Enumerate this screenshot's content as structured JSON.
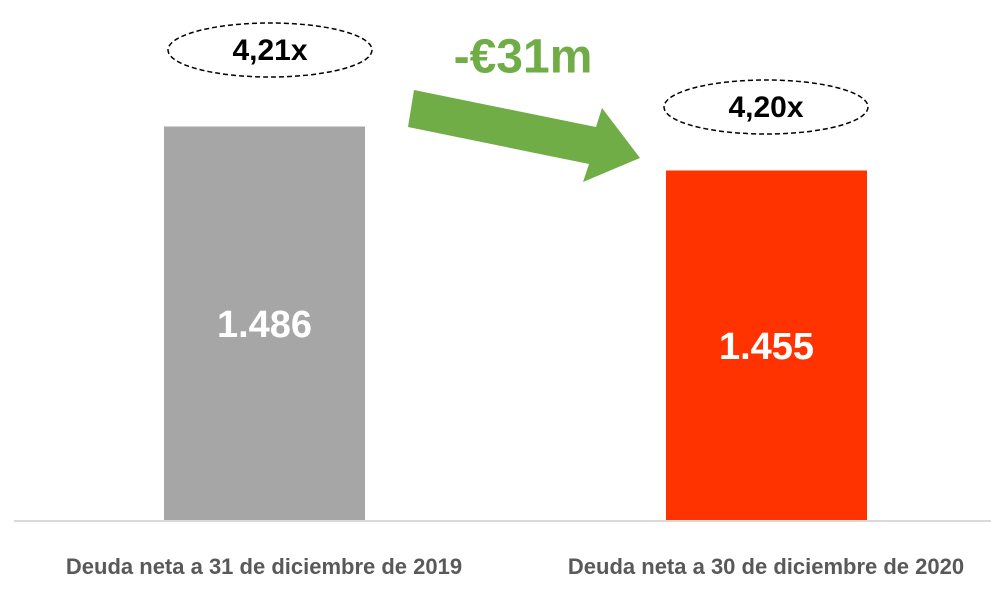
{
  "chart_data": {
    "type": "bar",
    "categories": [
      "Deuda neta a 31 de diciembre de 2019",
      "Deuda neta a 30 de diciembre de 2020"
    ],
    "values": [
      1486,
      1455
    ],
    "value_labels": [
      "1.486",
      "1.455"
    ],
    "colors": [
      "#a6a6a6",
      "#ff3300"
    ],
    "ylim": [
      1208,
      1554
    ],
    "annotations": [
      "4,21x",
      "4,20x",
      "-€31m"
    ]
  }
}
